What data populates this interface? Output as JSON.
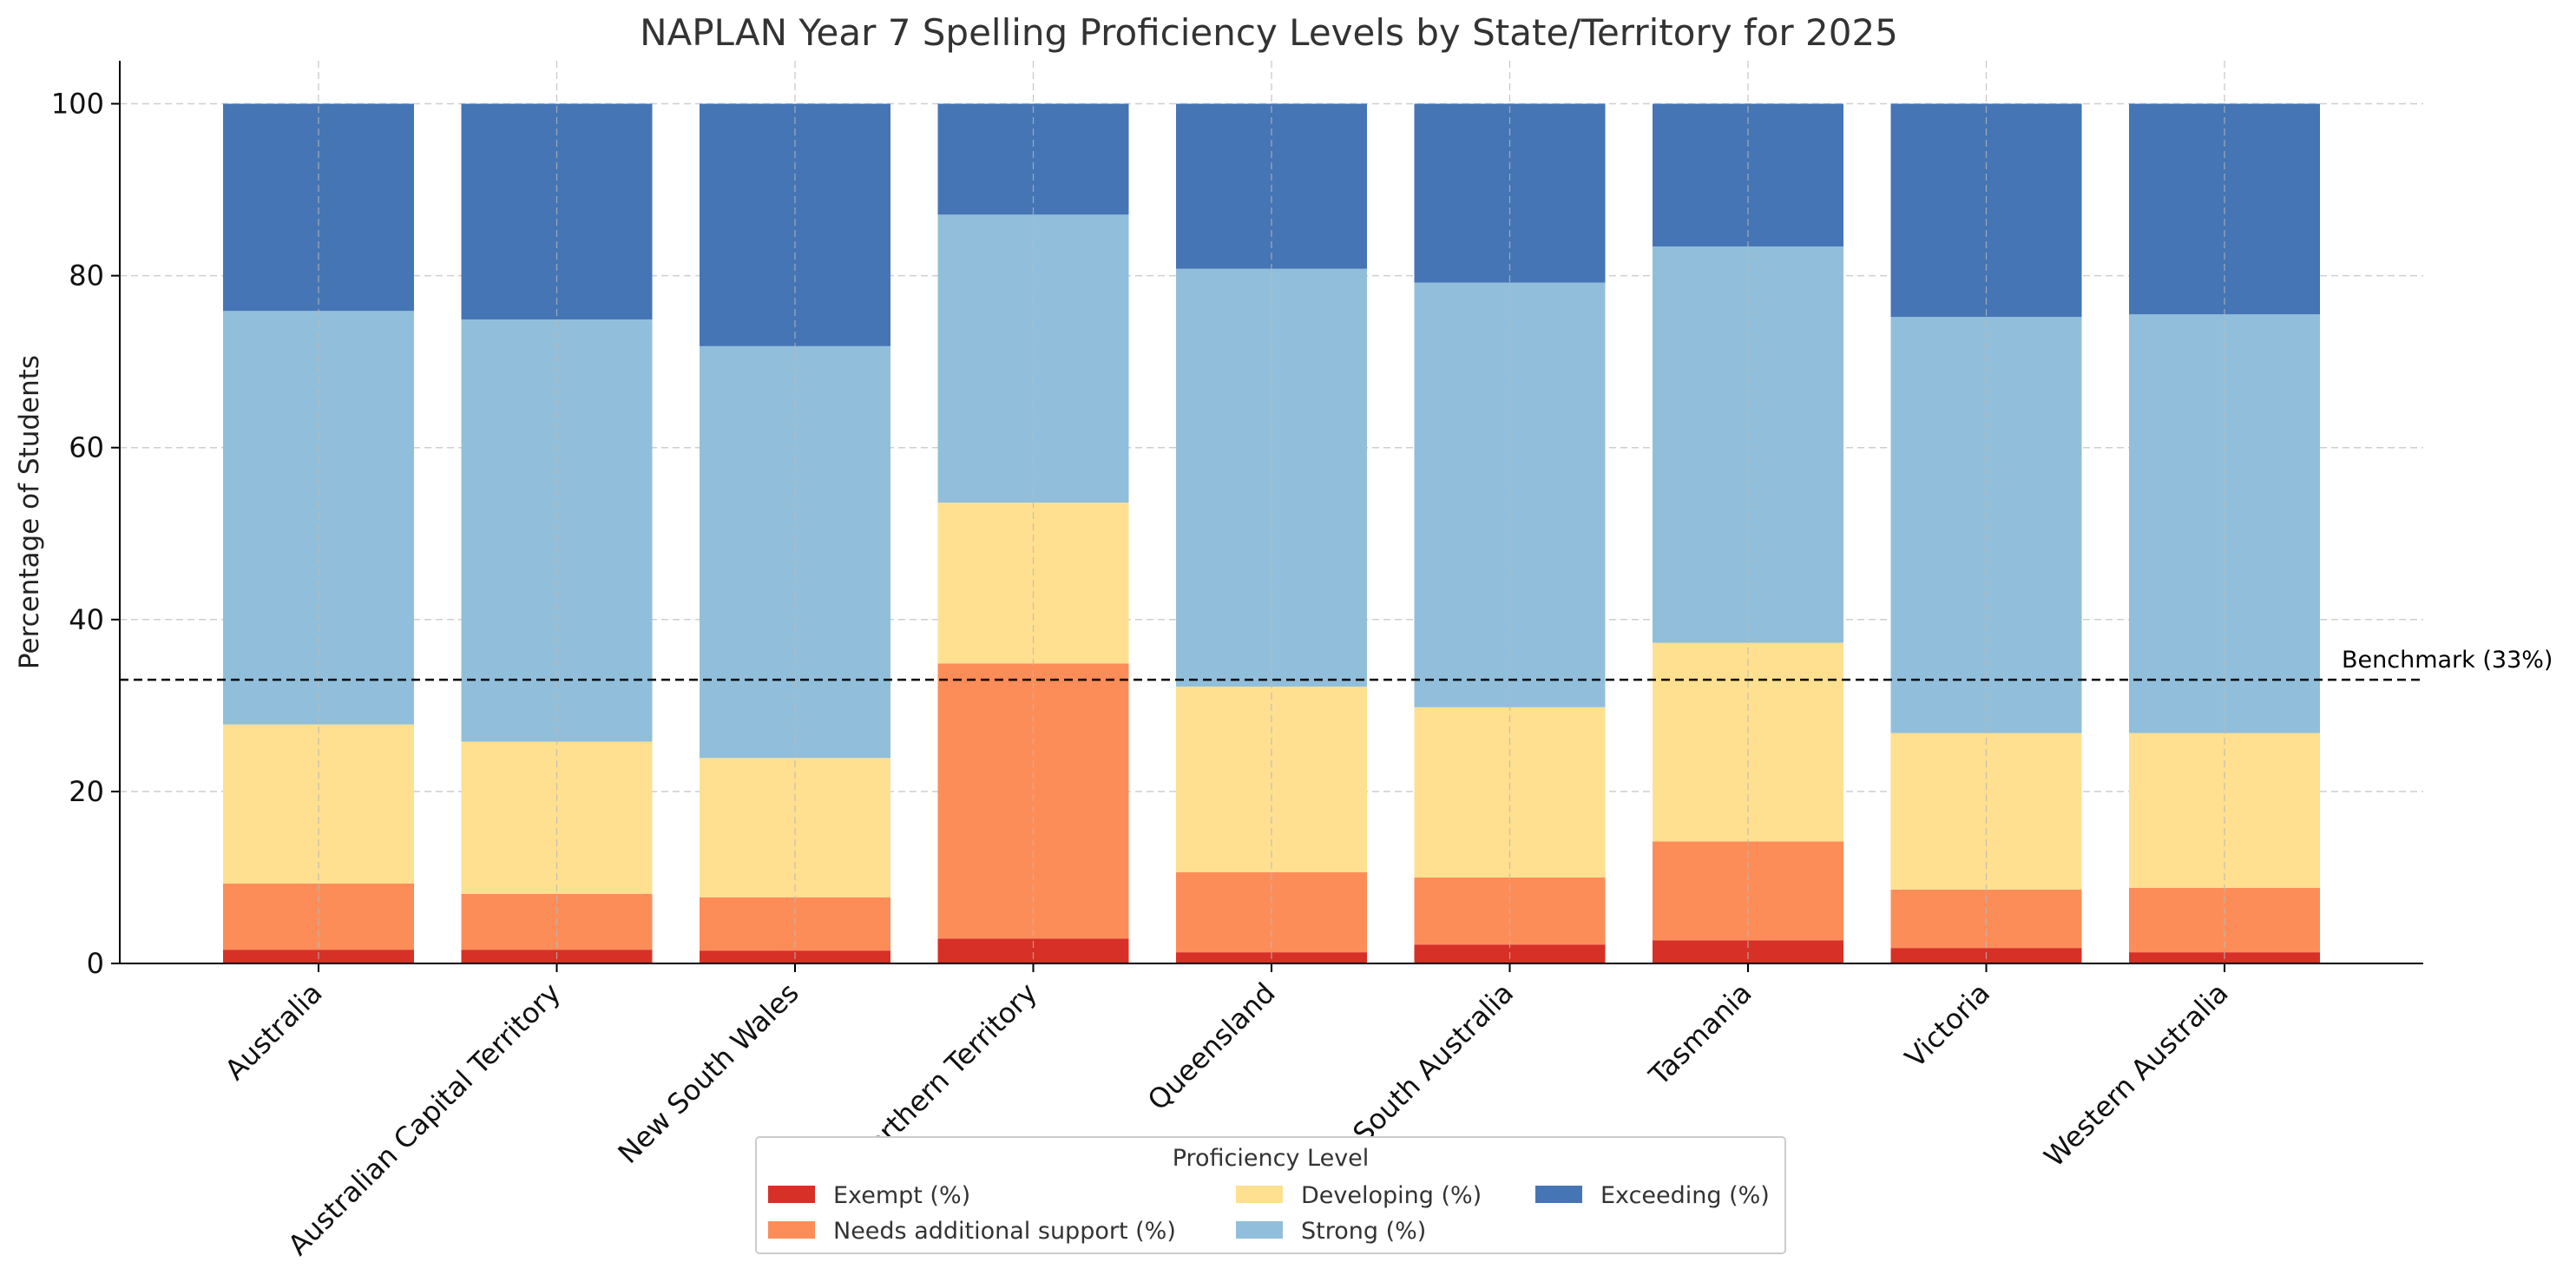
{
  "chart_data": {
    "type": "bar",
    "stacked": true,
    "title": "NAPLAN Year 7 Spelling Proficiency Levels by State/Territory for 2025",
    "xlabel": "",
    "ylabel": "Percentage of Students",
    "ylim": [
      0,
      105
    ],
    "yticks": [
      0,
      20,
      40,
      60,
      80,
      100
    ],
    "grid": true,
    "categories": [
      "Australia",
      "Australian Capital Territory",
      "New South Wales",
      "Northern Territory",
      "Queensland",
      "South Australia",
      "Tasmania",
      "Victoria",
      "Western Australia"
    ],
    "series": [
      {
        "name": "Exempt (%)",
        "color": "#d73027",
        "values": [
          1.6,
          1.6,
          1.5,
          2.9,
          1.3,
          2.2,
          2.7,
          1.8,
          1.3
        ]
      },
      {
        "name": "Needs additional support (%)",
        "color": "#fc8d59",
        "values": [
          7.7,
          6.5,
          6.2,
          32.0,
          9.3,
          7.8,
          11.5,
          6.8,
          7.5
        ]
      },
      {
        "name": "Developing (%)",
        "color": "#fee090",
        "values": [
          18.5,
          17.7,
          16.2,
          18.7,
          21.6,
          19.8,
          23.1,
          18.2,
          18.0
        ]
      },
      {
        "name": "Strong (%)",
        "color": "#91bfdb",
        "values": [
          48.1,
          49.1,
          47.9,
          33.5,
          48.6,
          49.4,
          46.1,
          48.4,
          48.7
        ]
      },
      {
        "name": "Exceeding (%)",
        "color": "#4575b4",
        "values": [
          24.1,
          25.1,
          28.2,
          12.9,
          19.2,
          20.8,
          16.6,
          24.8,
          24.5
        ]
      }
    ],
    "benchmark": {
      "value": 33,
      "label": "Benchmark (33%)"
    },
    "legend": {
      "title": "Proficiency Level",
      "placement": "bottom-center"
    }
  }
}
